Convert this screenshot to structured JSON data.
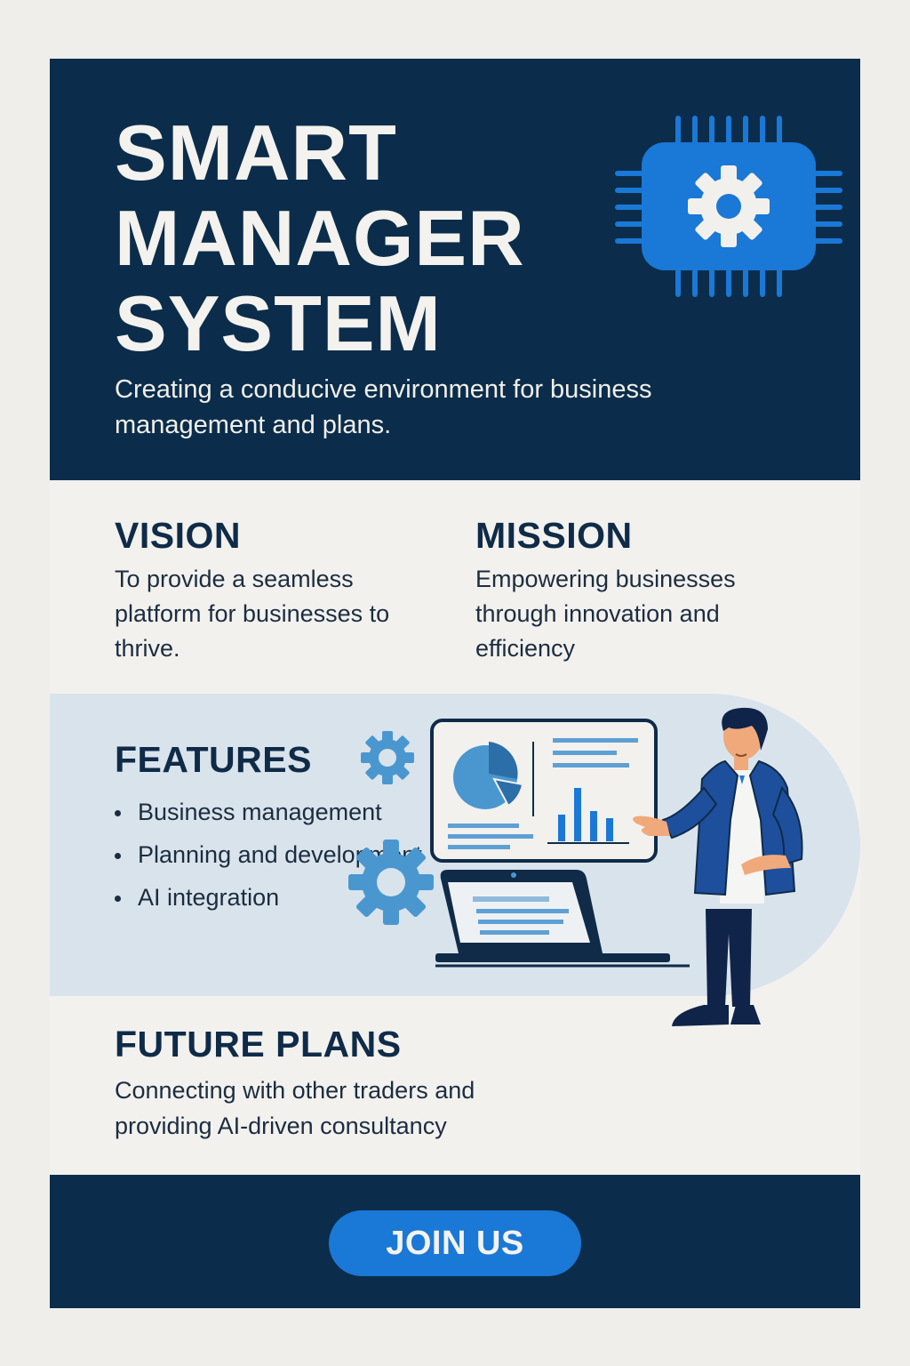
{
  "header": {
    "title_lines": [
      "SMART",
      "MANAGER",
      "SYSTEM"
    ],
    "subtitle": "Creating a conducive environment for business management and plans.",
    "icon": "chip-gear-icon"
  },
  "vision": {
    "title": "VISION",
    "text": "To provide a seamless platform for businesses to thrive."
  },
  "mission": {
    "title": "MISSION",
    "text": "Empowering businesses through innovation and efficiency"
  },
  "features": {
    "title": "FEATURES",
    "items": [
      "Business management",
      "Planning and development",
      "AI integration"
    ]
  },
  "future_plans": {
    "title": "FUTURE PLANS",
    "text": "Connecting with other traders and providing AI-driven consultancy"
  },
  "footer": {
    "cta_label": "JOIN US"
  },
  "colors": {
    "navy": "#0b2d4b",
    "accent_blue": "#1a78d6",
    "light_band": "#d9e3ec",
    "cream": "#f2f1ee"
  }
}
